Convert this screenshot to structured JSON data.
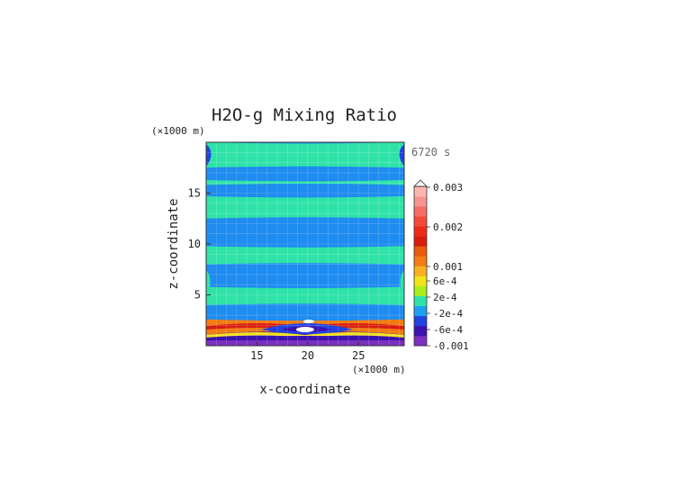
{
  "chart_data": {
    "type": "heatmap",
    "title": "H2O-g Mixing Ratio",
    "time_label": "6720 s",
    "xlabel": "x-coordinate",
    "ylabel": "z-coordinate",
    "x_units": "(×1000 m)",
    "y_units": "(×1000 m)",
    "xlim": [
      10,
      29.5
    ],
    "ylim": [
      0,
      20
    ],
    "x_ticks": [
      15,
      20,
      25
    ],
    "y_ticks": [
      5,
      10,
      15
    ],
    "grid": true,
    "legend_position": "right",
    "colorbar": {
      "tick_labels": [
        "0.003",
        "0.002",
        "0.001",
        "6e-4",
        "2e-4",
        "-2e-4",
        "-6e-4",
        "-0.001"
      ],
      "colors": [
        "#7b2fbf",
        "#3a12b0",
        "#2242e0",
        "#1ea0f0",
        "#2fe3a8",
        "#a8ee1a",
        "#f2e21a",
        "#f8b020",
        "#f27d14",
        "#e85a0c",
        "#d81c10",
        "#ee2a18",
        "#f24a3a",
        "#f56e66",
        "#f89490",
        "#fbb6b2"
      ]
    },
    "bands": [
      {
        "z": [
          0,
          0.6
        ],
        "level": "-0.001"
      },
      {
        "z": [
          0.6,
          1.6
        ],
        "level": "-6e-4"
      },
      {
        "z": [
          1.6,
          2.6
        ],
        "level": "0.001"
      },
      {
        "z": [
          2.6,
          4.0
        ],
        "level": "-2e-4"
      },
      {
        "z": [
          4.0,
          5.8
        ],
        "level": "2e-4"
      },
      {
        "z": [
          5.8,
          8.0
        ],
        "level": "-2e-4"
      },
      {
        "z": [
          8.0,
          9.8
        ],
        "level": "2e-4"
      },
      {
        "z": [
          9.8,
          12.5
        ],
        "level": "-2e-4"
      },
      {
        "z": [
          12.5,
          14.7
        ],
        "level": "2e-4"
      },
      {
        "z": [
          14.7,
          15.8
        ],
        "level": "-2e-4"
      },
      {
        "z": [
          15.8,
          16.3
        ],
        "level": "2e-4"
      },
      {
        "z": [
          16.3,
          17.5
        ],
        "level": "-2e-4"
      },
      {
        "z": [
          17.5,
          20.0
        ],
        "level": "2e-4"
      }
    ]
  }
}
